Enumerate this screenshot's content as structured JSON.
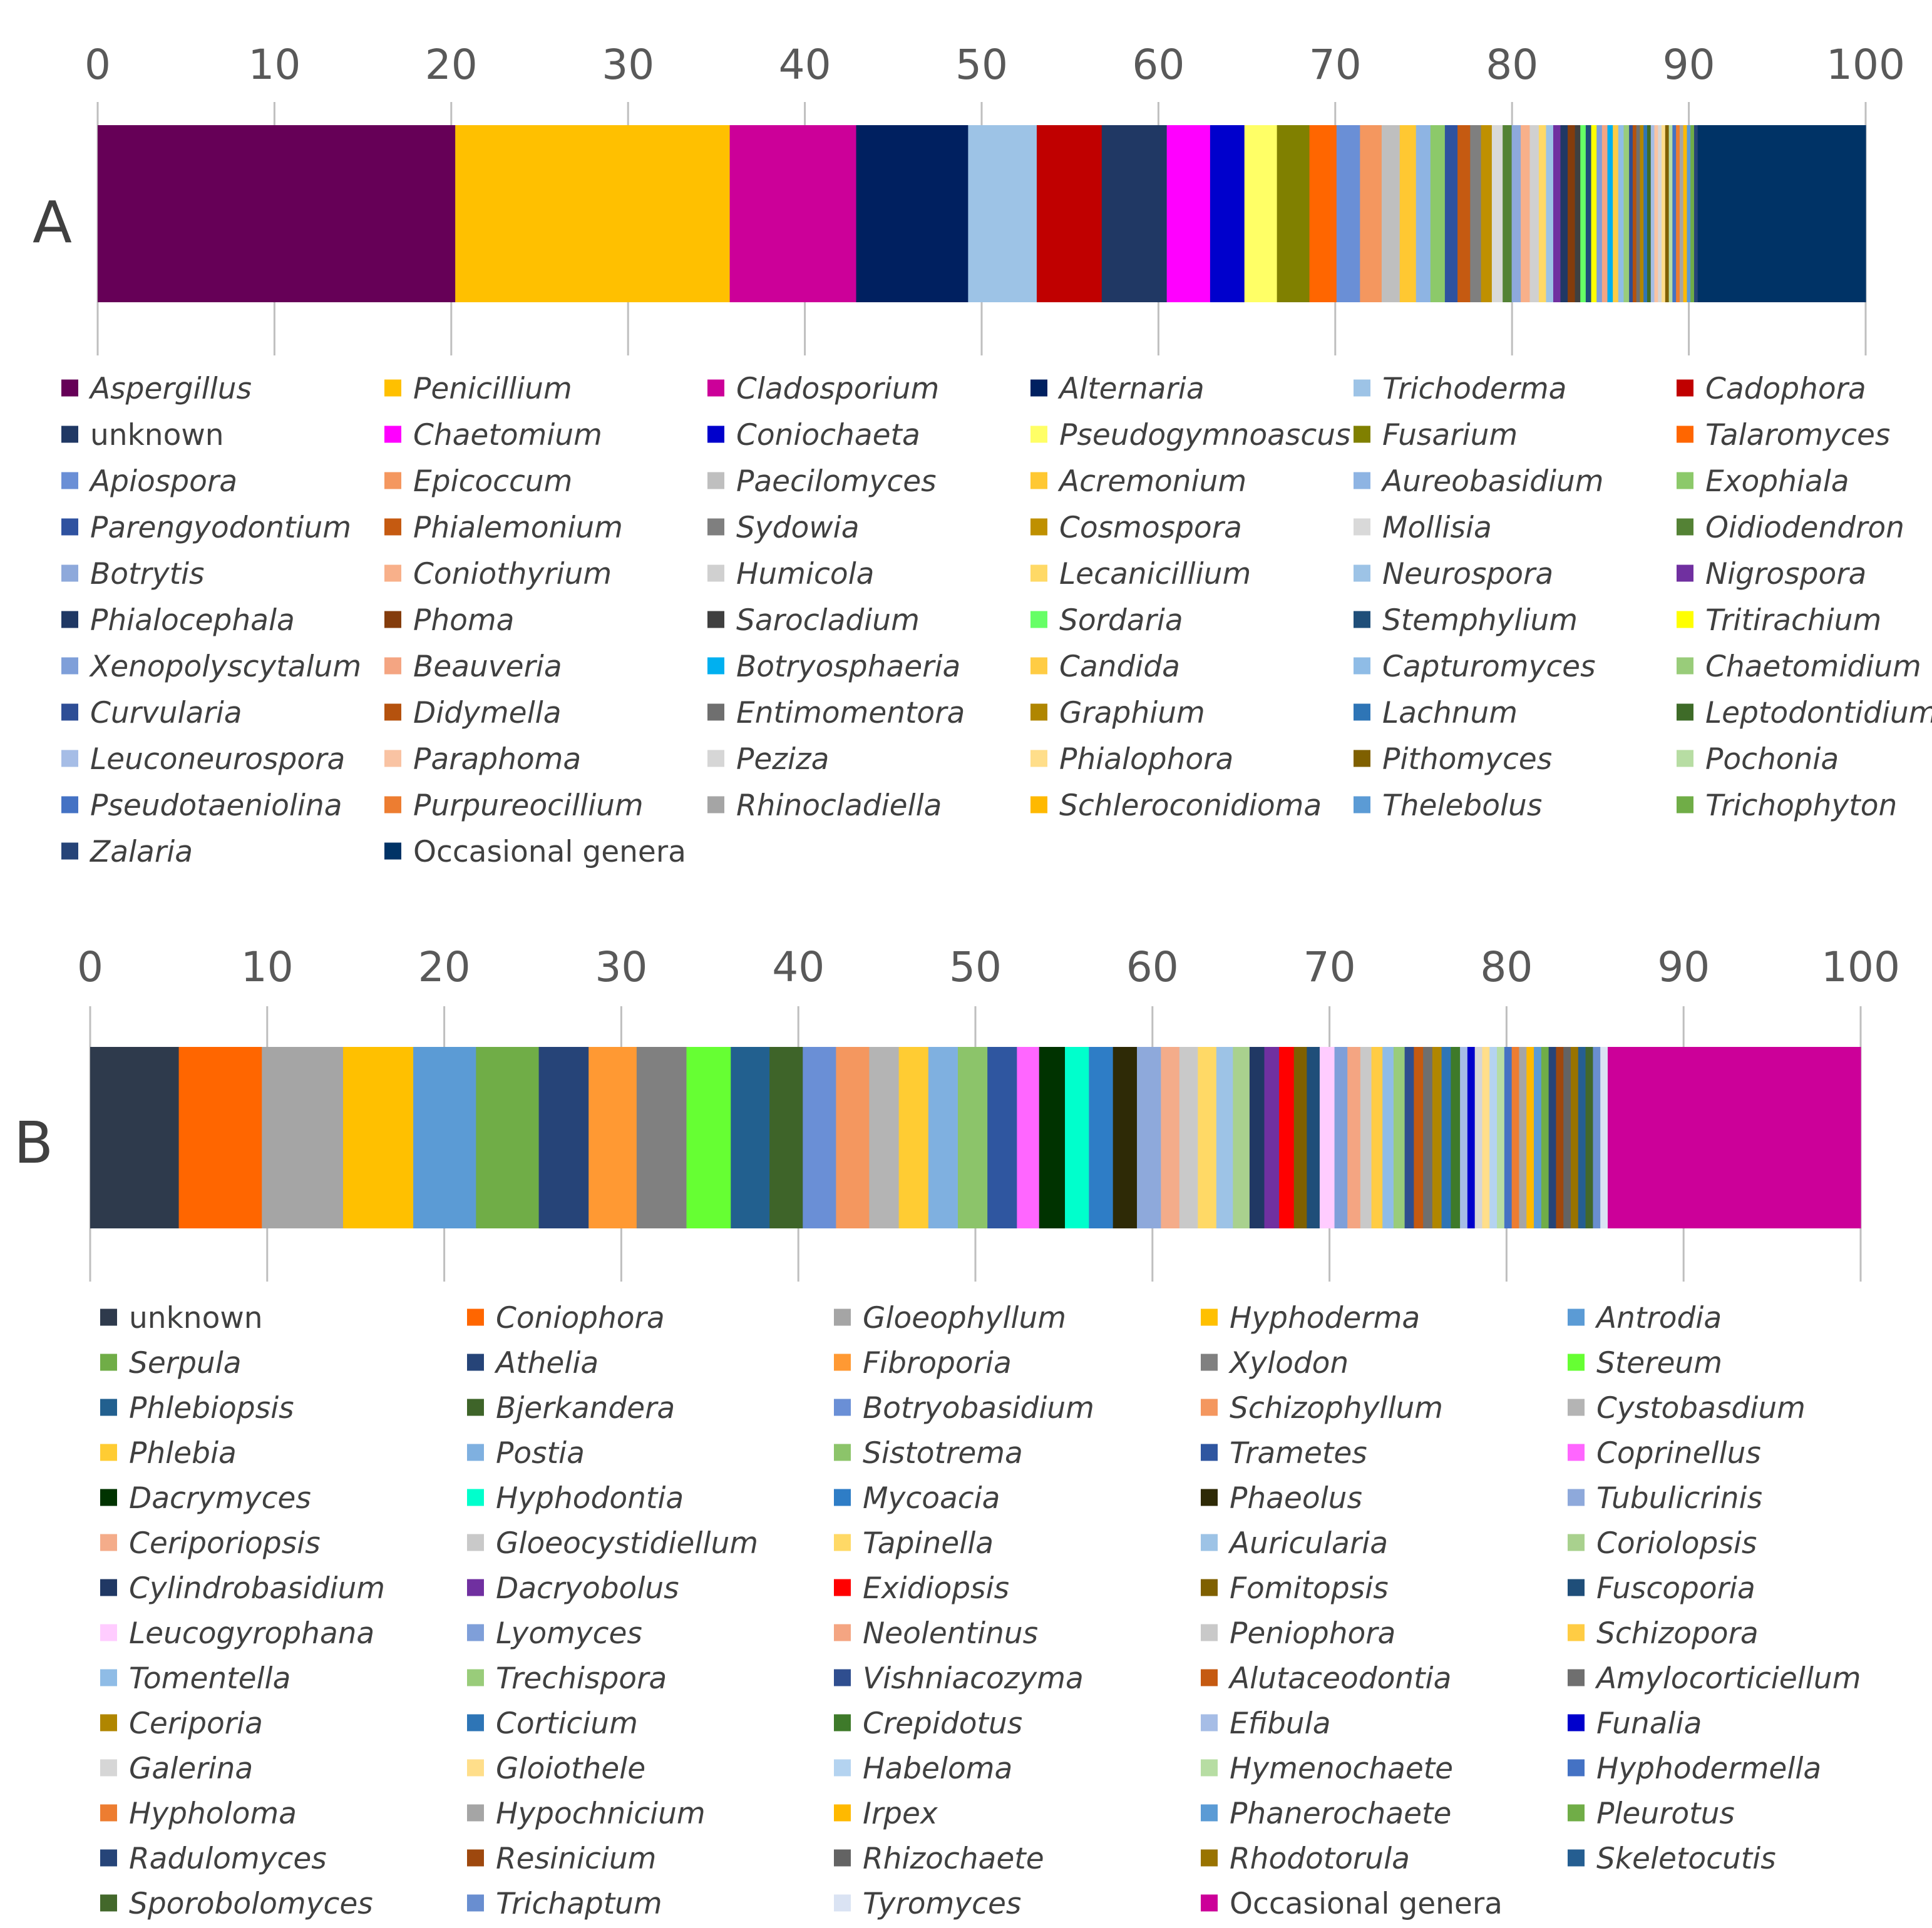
{
  "chart_data": [
    {
      "type": "bar",
      "orientation": "horizontal-stacked",
      "panel_label": "A",
      "xlim": [
        0,
        100
      ],
      "x_ticks": [
        0,
        10,
        20,
        30,
        40,
        50,
        60,
        70,
        80,
        90,
        100
      ],
      "grid": true,
      "legend_placement": "bottom",
      "series": [
        {
          "name": "Aspergillus",
          "value": 19.8,
          "color": "#660057"
        },
        {
          "name": "Penicillium",
          "value": 15.2,
          "color": "#FFC000"
        },
        {
          "name": "Cladosporium",
          "value": 7.0,
          "color": "#CC0099"
        },
        {
          "name": "Alternaria",
          "value": 6.2,
          "color": "#002060"
        },
        {
          "name": "Trichoderma",
          "value": 3.8,
          "color": "#9DC3E6"
        },
        {
          "name": "Cadophora",
          "value": 3.6,
          "color": "#C00000"
        },
        {
          "name": "unknown",
          "value": 3.6,
          "color": "#203864"
        },
        {
          "name": "Chaetomium",
          "value": 2.4,
          "color": "#FF00FF"
        },
        {
          "name": "Coniochaeta",
          "value": 1.9,
          "color": "#0000CC"
        },
        {
          "name": "Pseudogymnoascus",
          "value": 1.8,
          "color": "#FFFF66"
        },
        {
          "name": "Fusarium",
          "value": 1.8,
          "color": "#808000"
        },
        {
          "name": "Talaromyces",
          "value": 1.5,
          "color": "#FF6600"
        },
        {
          "name": "Apiospora",
          "value": 1.3,
          "color": "#6A8FD6"
        },
        {
          "name": "Epicoccum",
          "value": 1.2,
          "color": "#F4975F"
        },
        {
          "name": "Paecilomyces",
          "value": 1.0,
          "color": "#BFBFBF"
        },
        {
          "name": "Acremonium",
          "value": 0.9,
          "color": "#FFC832"
        },
        {
          "name": "Aureobasidium",
          "value": 0.8,
          "color": "#8EB4E3"
        },
        {
          "name": "Exophiala",
          "value": 0.8,
          "color": "#8CC96A"
        },
        {
          "name": "Parengyodontium",
          "value": 0.7,
          "color": "#2F52A0"
        },
        {
          "name": "Phialemonium",
          "value": 0.7,
          "color": "#C55A11"
        },
        {
          "name": "Sydowia",
          "value": 0.6,
          "color": "#7F7F7F"
        },
        {
          "name": "Cosmospora",
          "value": 0.6,
          "color": "#BF9000"
        },
        {
          "name": "Mollisia",
          "value": 0.6,
          "color": "#D9D9D9"
        },
        {
          "name": "Oidiodendron",
          "value": 0.5,
          "color": "#548235"
        },
        {
          "name": "Botrytis",
          "value": 0.5,
          "color": "#8EA9DB"
        },
        {
          "name": "Coniothyrium",
          "value": 0.5,
          "color": "#F8B08A"
        },
        {
          "name": "Humicola",
          "value": 0.5,
          "color": "#D0D0D0"
        },
        {
          "name": "Lecanicillium",
          "value": 0.4,
          "color": "#FFD966"
        },
        {
          "name": "Neurospora",
          "value": 0.4,
          "color": "#9DC3E6"
        },
        {
          "name": "Nigrospora",
          "value": 0.4,
          "color": "#7030A0"
        },
        {
          "name": "Phialocephala",
          "value": 0.4,
          "color": "#1F3864"
        },
        {
          "name": "Phoma",
          "value": 0.4,
          "color": "#843C0C"
        },
        {
          "name": "Sarocladium",
          "value": 0.3,
          "color": "#404040"
        },
        {
          "name": "Sordaria",
          "value": 0.3,
          "color": "#66FF66"
        },
        {
          "name": "Stemphylium",
          "value": 0.3,
          "color": "#1F4E79"
        },
        {
          "name": "Tritirachium",
          "value": 0.3,
          "color": "#FFFF00"
        },
        {
          "name": "Xenopolyscytalum",
          "value": 0.3,
          "color": "#7F9FD9"
        },
        {
          "name": "Beauveria",
          "value": 0.3,
          "color": "#F4A582"
        },
        {
          "name": "Botryosphaeria",
          "value": 0.3,
          "color": "#00B0F0"
        },
        {
          "name": "Candida",
          "value": 0.3,
          "color": "#FFCC44"
        },
        {
          "name": "Capturomyces",
          "value": 0.3,
          "color": "#8FBCE6"
        },
        {
          "name": "Chaetomidium",
          "value": 0.3,
          "color": "#99CC7A"
        },
        {
          "name": "Curvularia",
          "value": 0.2,
          "color": "#2E4E96"
        },
        {
          "name": "Didymella",
          "value": 0.2,
          "color": "#B5520E"
        },
        {
          "name": "Entimomentora",
          "value": 0.2,
          "color": "#6F6F6F"
        },
        {
          "name": "Graphium",
          "value": 0.2,
          "color": "#B08600"
        },
        {
          "name": "Lachnum",
          "value": 0.2,
          "color": "#2E75B6"
        },
        {
          "name": "Leptodontidium",
          "value": 0.2,
          "color": "#3E6B28"
        },
        {
          "name": "Leuconeurospora",
          "value": 0.2,
          "color": "#A6BDE6"
        },
        {
          "name": "Paraphoma",
          "value": 0.2,
          "color": "#F9C3A3"
        },
        {
          "name": "Peziza",
          "value": 0.2,
          "color": "#D6D6D6"
        },
        {
          "name": "Phialophora",
          "value": 0.2,
          "color": "#FFDE8A"
        },
        {
          "name": "Pithomyces",
          "value": 0.2,
          "color": "#7F6000"
        },
        {
          "name": "Pochonia",
          "value": 0.2,
          "color": "#B7DDA3"
        },
        {
          "name": "Pseudotaeniolina",
          "value": 0.2,
          "color": "#4472C4"
        },
        {
          "name": "Purpureocillium",
          "value": 0.2,
          "color": "#ED7D31"
        },
        {
          "name": "Rhinocladiella",
          "value": 0.2,
          "color": "#A5A5A5"
        },
        {
          "name": "Schleroconidioma",
          "value": 0.2,
          "color": "#FFB900"
        },
        {
          "name": "Thelebolus",
          "value": 0.2,
          "color": "#5B9BD5"
        },
        {
          "name": "Trichophyton",
          "value": 0.2,
          "color": "#70AD47"
        },
        {
          "name": "Zalaria",
          "value": 0.2,
          "color": "#264478"
        },
        {
          "name": "Occasional genera",
          "value": 9.3,
          "color": "#003366"
        }
      ]
    },
    {
      "type": "bar",
      "orientation": "horizontal-stacked",
      "panel_label": "B",
      "xlim": [
        0,
        100
      ],
      "x_ticks": [
        0,
        10,
        20,
        30,
        40,
        50,
        60,
        70,
        80,
        90,
        100
      ],
      "grid": true,
      "legend_placement": "bottom",
      "series": [
        {
          "name": "unknown",
          "value": 4.8,
          "color": "#2E3A4C"
        },
        {
          "name": "Coniophora",
          "value": 4.5,
          "color": "#FF6600"
        },
        {
          "name": "Gloeophyllum",
          "value": 4.4,
          "color": "#A5A5A5"
        },
        {
          "name": "Hyphoderma",
          "value": 3.8,
          "color": "#FFC000"
        },
        {
          "name": "Antrodia",
          "value": 3.4,
          "color": "#5B9BD5"
        },
        {
          "name": "Serpula",
          "value": 3.4,
          "color": "#70AD47"
        },
        {
          "name": "Athelia",
          "value": 2.7,
          "color": "#264478"
        },
        {
          "name": "Fibroporia",
          "value": 2.6,
          "color": "#FF9933"
        },
        {
          "name": "Xylodon",
          "value": 2.7,
          "color": "#808080"
        },
        {
          "name": "Stereum",
          "value": 2.4,
          "color": "#66FF33"
        },
        {
          "name": "Phlebiopsis",
          "value": 2.1,
          "color": "#22608F"
        },
        {
          "name": "Bjerkandera",
          "value": 1.8,
          "color": "#3E6429"
        },
        {
          "name": "Botryobasidium",
          "value": 1.8,
          "color": "#6A8FD6"
        },
        {
          "name": "Schizophyllum",
          "value": 1.8,
          "color": "#F4975F"
        },
        {
          "name": "Cystobasdium",
          "value": 1.6,
          "color": "#B4B4B4"
        },
        {
          "name": "Phlebia",
          "value": 1.6,
          "color": "#FFCC33"
        },
        {
          "name": "Postia",
          "value": 1.6,
          "color": "#7FB0E0"
        },
        {
          "name": "Sistotrema",
          "value": 1.6,
          "color": "#8CC46A"
        },
        {
          "name": "Trametes",
          "value": 1.6,
          "color": "#2F56A0"
        },
        {
          "name": "Coprinellus",
          "value": 1.2,
          "color": "#FF66FF"
        },
        {
          "name": "Dacrymyces",
          "value": 1.4,
          "color": "#003300"
        },
        {
          "name": "Hyphodontia",
          "value": 1.3,
          "color": "#00FFCC"
        },
        {
          "name": "Mycoacia",
          "value": 1.3,
          "color": "#2E7DC6"
        },
        {
          "name": "Phaeolus",
          "value": 1.3,
          "color": "#2E2A06"
        },
        {
          "name": "Tubulicrinis",
          "value": 1.3,
          "color": "#8EA9DB"
        },
        {
          "name": "Ceriporiopsis",
          "value": 1.0,
          "color": "#F4AC8A"
        },
        {
          "name": "Gloeocystidiellum",
          "value": 1.0,
          "color": "#C9C9C9"
        },
        {
          "name": "Tapinella",
          "value": 1.0,
          "color": "#FFD966"
        },
        {
          "name": "Auricularia",
          "value": 0.9,
          "color": "#9DC3E6"
        },
        {
          "name": "Coriolopsis",
          "value": 0.9,
          "color": "#A9D18E"
        },
        {
          "name": "Cylindrobasidium",
          "value": 0.8,
          "color": "#203864"
        },
        {
          "name": "Dacryobolus",
          "value": 0.8,
          "color": "#7030A0"
        },
        {
          "name": "Exidiopsis",
          "value": 0.8,
          "color": "#FF0000"
        },
        {
          "name": "Fomitopsis",
          "value": 0.7,
          "color": "#7F6000"
        },
        {
          "name": "Fuscoporia",
          "value": 0.7,
          "color": "#1F4E79"
        },
        {
          "name": "Leucogyrophana",
          "value": 0.8,
          "color": "#FFCCFF"
        },
        {
          "name": "Lyomyces",
          "value": 0.7,
          "color": "#7F9FD9"
        },
        {
          "name": "Neolentinus",
          "value": 0.7,
          "color": "#F4A582"
        },
        {
          "name": "Peniophora",
          "value": 0.6,
          "color": "#C9C9C9"
        },
        {
          "name": "Schizopora",
          "value": 0.6,
          "color": "#FFCC44"
        },
        {
          "name": "Tomentella",
          "value": 0.6,
          "color": "#8FBCE6"
        },
        {
          "name": "Trechispora",
          "value": 0.6,
          "color": "#99CC7A"
        },
        {
          "name": "Vishniacozyma",
          "value": 0.5,
          "color": "#2F4E8F"
        },
        {
          "name": "Alutaceodontia",
          "value": 0.5,
          "color": "#C55A11"
        },
        {
          "name": "Amylocorticiellum",
          "value": 0.5,
          "color": "#6F6F6F"
        },
        {
          "name": "Ceriporia",
          "value": 0.5,
          "color": "#B08600"
        },
        {
          "name": "Corticium",
          "value": 0.5,
          "color": "#2E75B6"
        },
        {
          "name": "Crepidotus",
          "value": 0.5,
          "color": "#3E7A2A"
        },
        {
          "name": "Efibula",
          "value": 0.4,
          "color": "#A6BDE6"
        },
        {
          "name": "Funalia",
          "value": 0.4,
          "color": "#0000CC"
        },
        {
          "name": "Galerina",
          "value": 0.4,
          "color": "#D6D6D6"
        },
        {
          "name": "Gloiothele",
          "value": 0.4,
          "color": "#FFDE8A"
        },
        {
          "name": "Habeloma",
          "value": 0.4,
          "color": "#B4D3F0"
        },
        {
          "name": "Hymenochaete",
          "value": 0.4,
          "color": "#B7DDA3"
        },
        {
          "name": "Hyphodermella",
          "value": 0.4,
          "color": "#4472C4"
        },
        {
          "name": "Hypholoma",
          "value": 0.4,
          "color": "#ED7D31"
        },
        {
          "name": "Hypochnicium",
          "value": 0.4,
          "color": "#A5A5A5"
        },
        {
          "name": "Irpex",
          "value": 0.4,
          "color": "#FFB900"
        },
        {
          "name": "Phanerochaete",
          "value": 0.4,
          "color": "#5B9BD5"
        },
        {
          "name": "Pleurotus",
          "value": 0.4,
          "color": "#70AD47"
        },
        {
          "name": "Radulomyces",
          "value": 0.4,
          "color": "#264478"
        },
        {
          "name": "Resinicium",
          "value": 0.4,
          "color": "#9E480E"
        },
        {
          "name": "Rhizochaete",
          "value": 0.4,
          "color": "#636363"
        },
        {
          "name": "Rhodotorula",
          "value": 0.4,
          "color": "#997300"
        },
        {
          "name": "Skeletocutis",
          "value": 0.4,
          "color": "#255E91"
        },
        {
          "name": "Sporobolomyces",
          "value": 0.4,
          "color": "#43682B"
        },
        {
          "name": "Trichaptum",
          "value": 0.4,
          "color": "#698ED0"
        },
        {
          "name": "Tyromyces",
          "value": 0.4,
          "color": "#DAE3F3"
        },
        {
          "name": "Occasional genera",
          "value": 13.7,
          "color": "#CC0099"
        }
      ]
    }
  ]
}
